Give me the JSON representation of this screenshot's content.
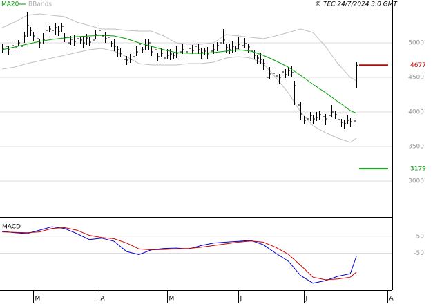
{
  "chart_data": [
    {
      "type": "ohlc",
      "source": "© TEC 24/7/2024 3:0 GMT",
      "xlim": [
        -0.7,
        125.5
      ],
      "ylim": [
        2490,
        5620
      ],
      "yticks": [
        3000,
        3500,
        4000,
        4500,
        5000
      ],
      "grid": true,
      "bars": {
        "color": "#000000",
        "close": [
          4920,
          4950,
          4900,
          4960,
          4940,
          5000,
          4950,
          5100,
          5250,
          5180,
          5100,
          5060,
          5000,
          5050,
          5180,
          5200,
          5180,
          5220,
          5160,
          5240,
          5080,
          5000,
          5050,
          5020,
          5060,
          5040,
          5000,
          5070,
          5010,
          5040,
          5120,
          5180,
          5100,
          5060,
          5080,
          4990,
          4950,
          4900,
          4850,
          4760,
          4750,
          4760,
          4800,
          4870,
          4980,
          4900,
          4960,
          5000,
          4870,
          4900,
          4800,
          4850,
          4780,
          4820,
          4840,
          4820,
          4850,
          4870,
          4900,
          4870,
          4920,
          4890,
          4950,
          4900,
          4860,
          4880,
          4840,
          4880,
          4900,
          4960,
          5000,
          5040,
          4930,
          4900,
          4950,
          4920,
          4980,
          4960,
          4990,
          4940,
          4880,
          4820,
          4780,
          4760,
          4700,
          4500,
          4550,
          4560,
          4520,
          4500,
          4580,
          4540,
          4600,
          4570,
          4380,
          4100,
          3970,
          3880,
          3900,
          3950,
          3900,
          3920,
          3960,
          3930,
          3900,
          3950,
          4000,
          3960,
          3890,
          3850,
          3830,
          3880,
          3860,
          3870,
          4677
        ],
        "high": [
          4980,
          5030,
          4950,
          5050,
          5010,
          5040,
          5050,
          5160,
          5440,
          5230,
          5160,
          5140,
          5050,
          5140,
          5250,
          5240,
          5280,
          5280,
          5240,
          5290,
          5140,
          5080,
          5100,
          5110,
          5130,
          5080,
          5100,
          5130,
          5090,
          5090,
          5180,
          5260,
          5150,
          5150,
          5150,
          5030,
          5050,
          4960,
          4930,
          4810,
          4810,
          4840,
          4850,
          4960,
          5050,
          4940,
          5060,
          5060,
          4950,
          4950,
          4860,
          4930,
          4830,
          4910,
          4910,
          4860,
          4950,
          4930,
          4980,
          4920,
          4980,
          4970,
          5000,
          4990,
          4930,
          4920,
          4940,
          4940,
          4980,
          5010,
          5060,
          5200,
          4980,
          4990,
          5020,
          4960,
          5080,
          5020,
          5070,
          4990,
          4940,
          4900,
          4830,
          4850,
          4770,
          4700,
          4650,
          4620,
          4600,
          4550,
          4640,
          4620,
          4650,
          4660,
          4450,
          4340,
          4140,
          3940,
          3980,
          4000,
          3960,
          4000,
          4010,
          4020,
          3970,
          3990,
          4100,
          4020,
          3970,
          3900,
          3890,
          3960,
          3910,
          3960,
          4720
        ],
        "low": [
          4850,
          4900,
          4820,
          4900,
          4850,
          4950,
          4880,
          5000,
          5080,
          5100,
          5030,
          5010,
          4920,
          4990,
          5090,
          5150,
          5110,
          5120,
          5100,
          5160,
          5010,
          4950,
          4970,
          4960,
          4970,
          4990,
          4930,
          4970,
          4950,
          4960,
          5050,
          5130,
          5020,
          5000,
          4990,
          4940,
          4880,
          4800,
          4790,
          4680,
          4680,
          4710,
          4720,
          4810,
          4890,
          4850,
          4890,
          4900,
          4810,
          4820,
          4730,
          4800,
          4700,
          4760,
          4750,
          4770,
          4780,
          4770,
          4840,
          4790,
          4850,
          4840,
          4870,
          4840,
          4770,
          4830,
          4770,
          4780,
          4840,
          4880,
          4930,
          4990,
          4850,
          4840,
          4860,
          4870,
          4910,
          4880,
          4930,
          4860,
          4810,
          4770,
          4700,
          4700,
          4610,
          4450,
          4480,
          4460,
          4460,
          4400,
          4510,
          4490,
          4520,
          4510,
          4100,
          4000,
          3880,
          3820,
          3840,
          3870,
          3830,
          3870,
          3880,
          3870,
          3810,
          3900,
          3930,
          3900,
          3830,
          3780,
          3760,
          3830,
          3780,
          3820,
          4340
        ]
      },
      "series": [
        {
          "name": "MA20",
          "color": "#00a000",
          "x": [
            0,
            4,
            8,
            12,
            16,
            20,
            24,
            28,
            32,
            36,
            40,
            44,
            48,
            52,
            56,
            60,
            64,
            68,
            72,
            76,
            80,
            84,
            88,
            92,
            96,
            100,
            104,
            108,
            112,
            114
          ],
          "values": [
            4900,
            4940,
            4980,
            5020,
            5050,
            5070,
            5090,
            5100,
            5110,
            5100,
            5060,
            5000,
            4950,
            4900,
            4860,
            4850,
            4850,
            4860,
            4880,
            4900,
            4880,
            4820,
            4740,
            4650,
            4530,
            4400,
            4280,
            4150,
            4020,
            3980
          ]
        },
        {
          "name": "BBands",
          "color": "#c0c0c0",
          "x": [
            0,
            4,
            8,
            12,
            16,
            20,
            24,
            28,
            32,
            36,
            40,
            44,
            48,
            52,
            56,
            60,
            64,
            68,
            72,
            76,
            80,
            84,
            88,
            92,
            96,
            100,
            104,
            108,
            112,
            114
          ],
          "upper": [
            5220,
            5300,
            5400,
            5420,
            5400,
            5380,
            5300,
            5250,
            5200,
            5200,
            5180,
            5170,
            5170,
            5100,
            5000,
            4980,
            4980,
            5000,
            5120,
            5100,
            5080,
            5060,
            5100,
            5150,
            5200,
            5150,
            4950,
            4700,
            4500,
            4450
          ],
          "lower": [
            4620,
            4650,
            4700,
            4740,
            4780,
            4820,
            4860,
            4900,
            4920,
            4880,
            4800,
            4700,
            4680,
            4680,
            4680,
            4700,
            4700,
            4720,
            4780,
            4800,
            4780,
            4700,
            4500,
            4280,
            4000,
            3800,
            3700,
            3620,
            3560,
            3620
          ]
        }
      ],
      "levels": [
        {
          "value": 4677,
          "color": "#cc0000"
        },
        {
          "value": 3179,
          "color": "#009900"
        }
      ]
    },
    {
      "type": "line",
      "title": "MACD",
      "xlim": [
        -0.7,
        125.5
      ],
      "ylim": [
        -266,
        150
      ],
      "yticks": [
        -50,
        50
      ],
      "grid": true,
      "xticks": [
        {
          "value": 10,
          "label": "M"
        },
        {
          "value": 31,
          "label": "A"
        },
        {
          "value": 53,
          "label": "M"
        },
        {
          "value": 76,
          "label": "J"
        },
        {
          "value": 97,
          "label": "J"
        },
        {
          "value": 124,
          "label": "A"
        }
      ],
      "series": [
        {
          "color": "#0000cc",
          "x": [
            0,
            4,
            8,
            12,
            16,
            20,
            24,
            28,
            32,
            36,
            40,
            44,
            48,
            52,
            56,
            60,
            64,
            68,
            72,
            76,
            80,
            84,
            88,
            92,
            96,
            100,
            104,
            108,
            112,
            114
          ],
          "values": [
            78,
            70,
            65,
            85,
            105,
            95,
            65,
            30,
            38,
            20,
            -40,
            -58,
            -30,
            -22,
            -20,
            -25,
            -5,
            10,
            15,
            20,
            25,
            0,
            -50,
            -95,
            -180,
            -225,
            -210,
            -185,
            -170,
            -66
          ]
        },
        {
          "color": "#cc0000",
          "x": [
            0,
            4,
            8,
            12,
            16,
            20,
            24,
            28,
            32,
            36,
            40,
            44,
            48,
            52,
            56,
            60,
            64,
            68,
            72,
            76,
            80,
            84,
            88,
            92,
            96,
            100,
            104,
            108,
            112,
            114
          ],
          "values": [
            75,
            72,
            70,
            75,
            95,
            100,
            85,
            55,
            42,
            35,
            10,
            -25,
            -30,
            -28,
            -25,
            -22,
            -15,
            -5,
            5,
            15,
            22,
            15,
            -15,
            -55,
            -120,
            -190,
            -205,
            -200,
            -190,
            -160
          ]
        }
      ]
    }
  ]
}
